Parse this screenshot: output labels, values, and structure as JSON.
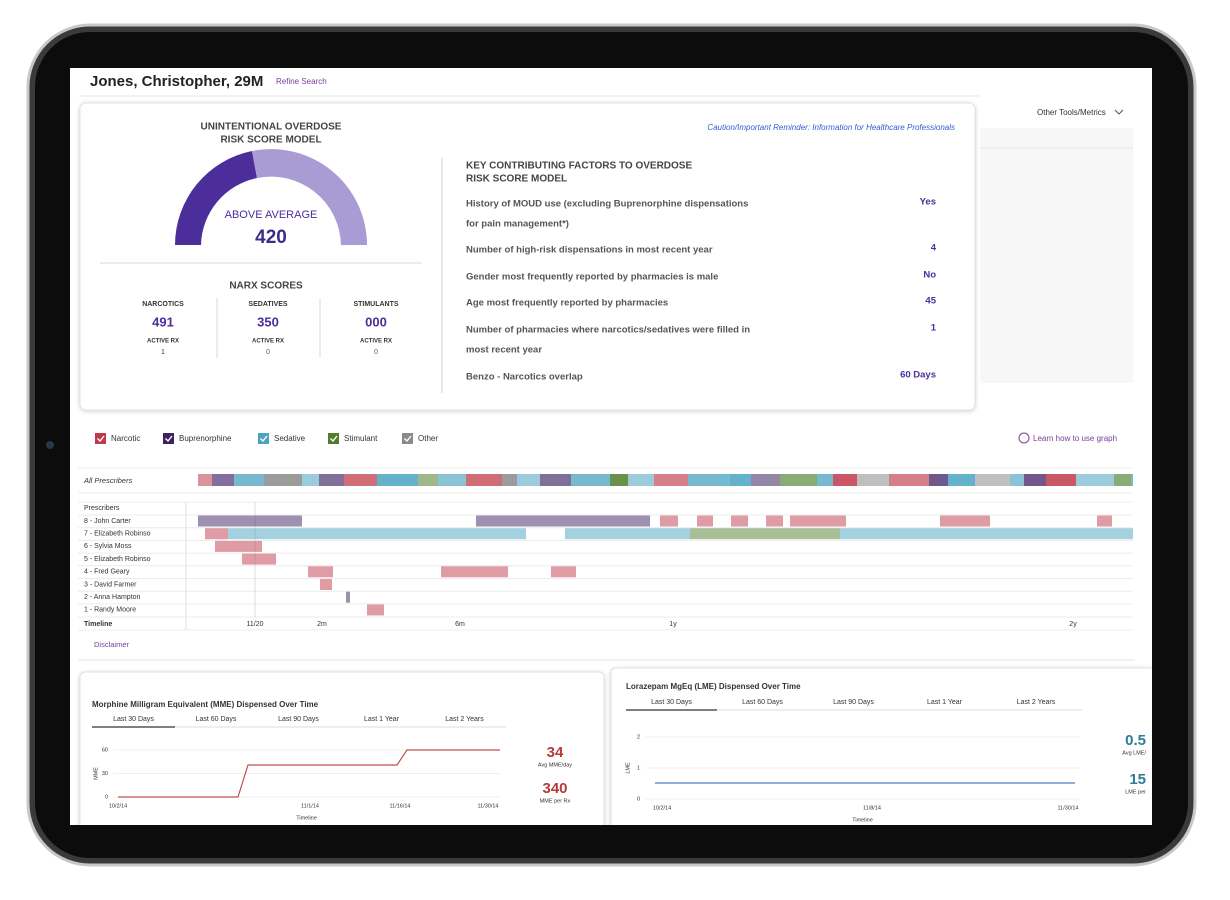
{
  "header": {
    "name": "Jones, Christopher, 29M",
    "refine_link": "Refine Search",
    "tools_menu": "Other Tools/Metrics"
  },
  "risk_model": {
    "title": [
      "UNINTENTIONAL OVERDOSE",
      "RISK SCORE MODEL"
    ],
    "caution": "Caution/Important Reminder: Information for Healthcare Professionals",
    "level": "ABOVE AVERAGE",
    "score": "420"
  },
  "narx": {
    "title": "NARX SCORES",
    "scores": [
      {
        "label": "NARCOTICS",
        "score": "491",
        "active_label": "ACTIVE RX",
        "active": "1"
      },
      {
        "label": "SEDATIVES",
        "score": "350",
        "active_label": "ACTIVE RX",
        "active": "0"
      },
      {
        "label": "STIMULANTS",
        "score": "000",
        "active_label": "ACTIVE RX",
        "active": "0"
      }
    ]
  },
  "factors": {
    "title": [
      "KEY CONTRIBUTING FACTORS TO OVERDOSE",
      "RISK SCORE MODEL"
    ],
    "items": [
      {
        "label": [
          "History of MOUD use (excluding Buprenorphine dispensations",
          "for pain management*)"
        ],
        "value": "Yes"
      },
      {
        "label": [
          "Number of high-risk dispensations in most recent year"
        ],
        "value": "4"
      },
      {
        "label": [
          "Gender most frequently reported by pharmacies is male"
        ],
        "value": "No"
      },
      {
        "label": [
          "Age most frequently reported by pharmacies"
        ],
        "value": "45"
      },
      {
        "label": [
          "Number of pharmacies where narcotics/sedatives were filled in",
          "most recent year"
        ],
        "value": "1"
      },
      {
        "label": [
          "Benzo - Narcotics overlap"
        ],
        "value": "60 Days"
      }
    ]
  },
  "legend": {
    "items": [
      {
        "label": "Narcotic",
        "color": "#c0394b"
      },
      {
        "label": "Buprenorphine",
        "color": "#3d2163"
      },
      {
        "label": "Sedative",
        "color": "#4aa3bf"
      },
      {
        "label": "Stimulant",
        "color": "#4f7d2d"
      },
      {
        "label": "Other",
        "color": "#8a8a8a"
      }
    ],
    "help": "Learn how to use graph"
  },
  "timeline": {
    "all_label": "All Prescribers",
    "rows_header": "Prescribers",
    "prescribers": [
      "8 - John Carter",
      "7 - Elizabeth Robinso",
      "6 - Sylvia Moss",
      "5 - Elizabeth Robinso",
      "4 - Fred Geary",
      "3 - David Farmer",
      "2 - Anna Hampton",
      "1 - Randy Moore"
    ],
    "axis_label": "Timeline",
    "ticks": [
      "11/20",
      "2m",
      "6m",
      "1y",
      "2y"
    ],
    "disclaimer": "Disclaimer"
  },
  "panels": [
    {
      "title": "Morphine Milligram Equivalent (MME) Dispensed Over Time",
      "tabs": [
        "Last 30 Days",
        "Last 60 Days",
        "Last 90 Days",
        "Last 1 Year",
        "Last 2 Years"
      ],
      "y_label": "MME",
      "yticks": [
        "60",
        "30",
        "0"
      ],
      "xticks": [
        "10/2/14",
        "11/1/14",
        "11/16/14",
        "11/30/14"
      ],
      "x_label": "Timeline",
      "stats": [
        {
          "value": "34",
          "label": "Avg MME/day"
        },
        {
          "value": "340",
          "label": "MME per Rx"
        }
      ]
    },
    {
      "title": "Lorazepam MgEq (LME) Dispensed Over Time",
      "tabs": [
        "Last 30 Days",
        "Last 60 Days",
        "Last 90 Days",
        "Last 1 Year",
        "Last 2 Years"
      ],
      "y_label": "LME",
      "yticks": [
        "2",
        "1",
        "0"
      ],
      "xticks": [
        "10/2/14",
        "11/8/14",
        "11/30/14"
      ],
      "x_label": "Timeline",
      "stats": [
        {
          "value": "0.5",
          "label": "Avg LME/"
        },
        {
          "value": "15",
          "label": "LME per"
        }
      ]
    }
  ]
}
